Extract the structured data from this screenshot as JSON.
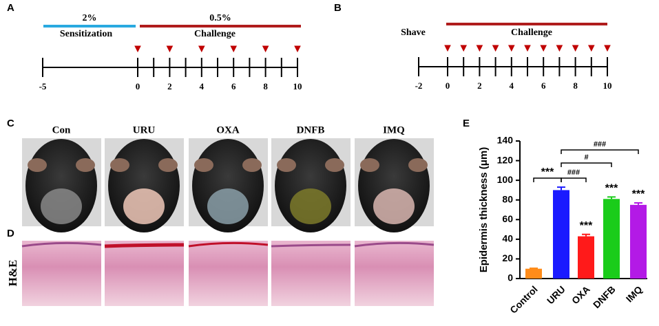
{
  "panels": {
    "A": {
      "label": "A",
      "phases": [
        {
          "percent": "2%",
          "name": "Sensitization"
        },
        {
          "percent": "0.5%",
          "name": "Challenge"
        }
      ],
      "ticks": [
        -5,
        0,
        1,
        2,
        3,
        4,
        5,
        6,
        7,
        8,
        9,
        10
      ],
      "tick_labels": [
        -5,
        0,
        2,
        4,
        6,
        8,
        10
      ],
      "arrows": [
        0,
        2,
        4,
        6,
        8,
        10
      ]
    },
    "B": {
      "label": "B",
      "start": "Shave",
      "phase": "Challenge",
      "ticks": [
        -2,
        0,
        1,
        2,
        3,
        4,
        5,
        6,
        7,
        8,
        9,
        10
      ],
      "tick_labels": [
        -2,
        0,
        2,
        4,
        6,
        8,
        10
      ],
      "arrows": [
        0,
        1,
        2,
        3,
        4,
        5,
        6,
        7,
        8,
        9,
        10
      ]
    },
    "C": {
      "label": "C",
      "groups": [
        "Con",
        "URU",
        "OXA",
        "DNFB",
        "IMQ"
      ]
    },
    "D": {
      "label": "D",
      "stain": "H&E"
    }
  },
  "chart_data": {
    "type": "bar",
    "panel": "E",
    "ylabel": "Epidermis thickness (μm)",
    "categories": [
      "Control",
      "URU",
      "OXA",
      "DNFB",
      "IMQ"
    ],
    "values": [
      10,
      90,
      43,
      81,
      75
    ],
    "errors": [
      0.5,
      3,
      2,
      2,
      2
    ],
    "colors": [
      "#ff8c1a",
      "#1a1aff",
      "#ff1a1a",
      "#1acc1a",
      "#b31ae6"
    ],
    "bar_labels": [
      null,
      null,
      "***",
      "***",
      "***"
    ],
    "brackets": [
      "***",
      "###",
      "#",
      "###"
    ],
    "ylim": [
      0,
      140
    ],
    "yticks": [
      0,
      20,
      40,
      60,
      80,
      100,
      120,
      140
    ]
  }
}
